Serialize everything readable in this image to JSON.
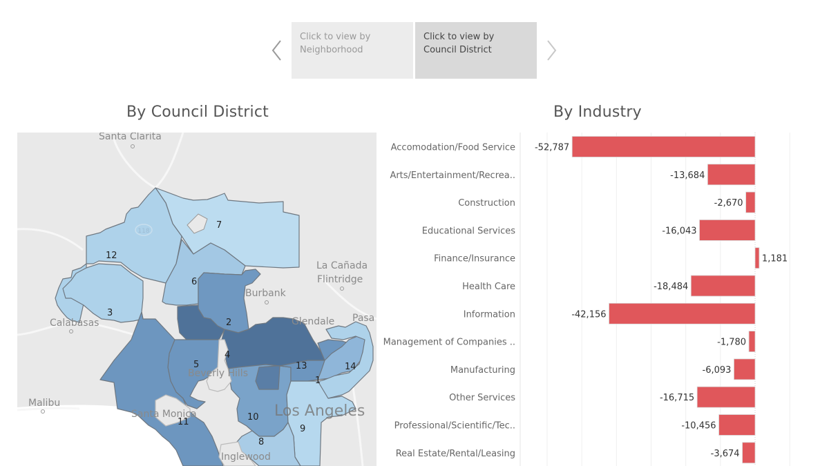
{
  "navigator": {
    "prev_icon": "chevron-left-icon",
    "next_icon": "chevron-right-icon",
    "tabs": [
      {
        "line1": "Click to view by",
        "line2": "Neighborhood",
        "active": false
      },
      {
        "line1": "Click to view by",
        "line2": "Council District",
        "active": true
      }
    ]
  },
  "map": {
    "title": "By Council District",
    "place_labels": [
      "Santa Clarita",
      "La Cañada",
      "Flintridge",
      "Burbank",
      "Glendale",
      "Pasa",
      "Calabasas",
      "Malibu",
      "Santa Monica",
      "Beverly Hills",
      "Los Angeles",
      "Inglewood"
    ],
    "highway_shield": "118",
    "district_labels": [
      "12",
      "7",
      "6",
      "3",
      "2",
      "4",
      "5",
      "13",
      "1",
      "14",
      "11",
      "10",
      "8",
      "9"
    ],
    "colors": {
      "lightest": "#bcdcf0",
      "light": "#a9cce6",
      "mid": "#7aa3c9",
      "dark": "#5f88b2",
      "darkest": "#4f7299",
      "base": "#e8e8e8",
      "border": "#6e7780"
    }
  },
  "chart_data": {
    "type": "bar",
    "orientation": "horizontal",
    "title": "By Industry",
    "categories": [
      "Accomodation/Food Service",
      "Arts/Entertainment/Recrea..",
      "Construction",
      "Educational Services",
      "Finance/Insurance",
      "Health Care",
      "Information",
      "Management of Companies ..",
      "Manufacturing",
      "Other Services",
      "Professional/Scientific/Tec..",
      "Real Estate/Rental/Leasing"
    ],
    "values": [
      -52787,
      -13684,
      -2670,
      -16043,
      1181,
      -18484,
      -42156,
      -1780,
      -6093,
      -16715,
      -10456,
      -3674
    ],
    "value_labels": [
      "-52,787",
      "-13,684",
      "-2,670",
      "-16,043",
      "1,181",
      "-18,484",
      "-42,156",
      "-1,780",
      "-6,093",
      "-16,715",
      "-10,456",
      "-3,674"
    ],
    "xlim": [
      -60000,
      10000
    ],
    "gridline_step": 10000,
    "grid": true,
    "bar_color": "#e0575b",
    "xlabel": "",
    "ylabel": ""
  }
}
